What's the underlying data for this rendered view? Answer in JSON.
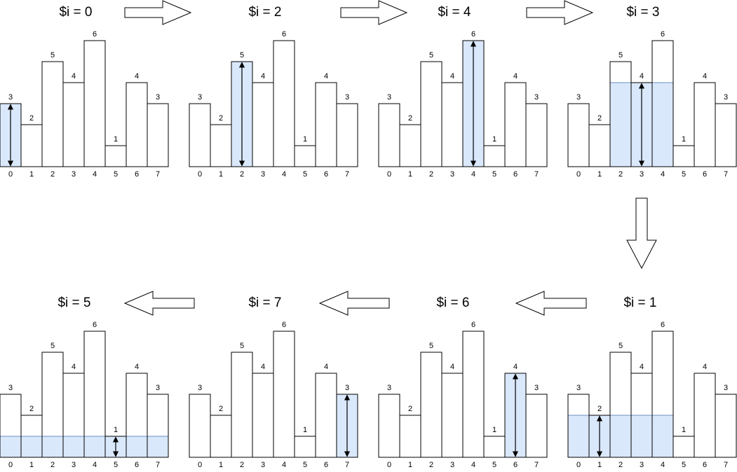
{
  "heights": [
    3,
    2,
    5,
    4,
    6,
    1,
    4,
    3
  ],
  "indices": [
    "0",
    "1",
    "2",
    "3",
    "4",
    "5",
    "6",
    "7"
  ],
  "colors": {
    "highlight_fill": "#dae8fc",
    "highlight_stroke": "#6c8ebf",
    "bar_stroke": "#000000"
  },
  "panels": [
    {
      "title": "$i = 0",
      "i": 0,
      "span": [
        0,
        0
      ],
      "level": 3
    },
    {
      "title": "$i = 2",
      "i": 2,
      "span": [
        2,
        2
      ],
      "level": 5
    },
    {
      "title": "$i = 4",
      "i": 4,
      "span": [
        4,
        4
      ],
      "level": 6
    },
    {
      "title": "$i = 3",
      "i": 3,
      "span": [
        2,
        4
      ],
      "level": 4
    },
    {
      "title": "$i = 5",
      "i": 5,
      "span": [
        0,
        7
      ],
      "level": 1
    },
    {
      "title": "$i = 7",
      "i": 7,
      "span": [
        7,
        7
      ],
      "level": 3
    },
    {
      "title": "$i = 6",
      "i": 6,
      "span": [
        6,
        6
      ],
      "level": 4
    },
    {
      "title": "$i = 1",
      "i": 1,
      "span": [
        0,
        4
      ],
      "level": 2
    }
  ],
  "flow_arrows": [
    {
      "name": "arrow-right-1",
      "direction": "right"
    },
    {
      "name": "arrow-right-2",
      "direction": "right"
    },
    {
      "name": "arrow-right-3",
      "direction": "right"
    },
    {
      "name": "arrow-down",
      "direction": "down"
    },
    {
      "name": "arrow-left-1",
      "direction": "left"
    },
    {
      "name": "arrow-left-2",
      "direction": "left"
    },
    {
      "name": "arrow-left-3",
      "direction": "left"
    }
  ]
}
